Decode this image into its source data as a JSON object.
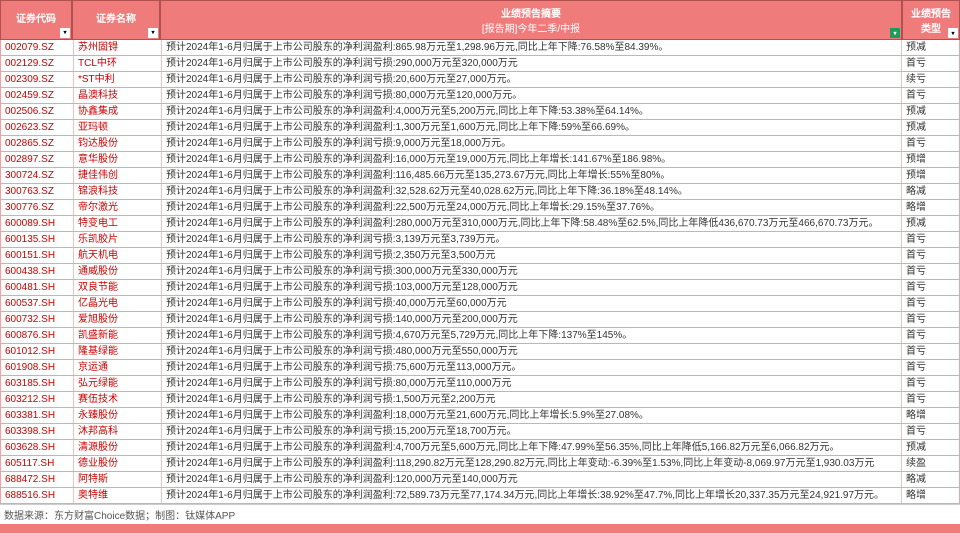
{
  "header": {
    "code": "证券代码",
    "name": "证券名称",
    "summary_line1": "业绩预告摘要",
    "summary_line2": "[报告期]今年二季/中报",
    "type_line1": "业绩预告",
    "type_line2": "类型"
  },
  "rows": [
    {
      "code": "002079.SZ",
      "name": "苏州固锝",
      "summary": "预计2024年1-6月归属于上市公司股东的净利润盈利:865.98万元至1,298.96万元,同比上年下降:76.58%至84.39%。",
      "type": "预减"
    },
    {
      "code": "002129.SZ",
      "name": "TCL中环",
      "summary": "预计2024年1-6月归属于上市公司股东的净利润亏损:290,000万元至320,000万元",
      "type": "首亏"
    },
    {
      "code": "002309.SZ",
      "name": "*ST中利",
      "summary": "预计2024年1-6月归属于上市公司股东的净利润亏损:20,600万元至27,000万元。",
      "type": "续亏"
    },
    {
      "code": "002459.SZ",
      "name": "晶澳科技",
      "summary": "预计2024年1-6月归属于上市公司股东的净利润亏损:80,000万元至120,000万元。",
      "type": "首亏"
    },
    {
      "code": "002506.SZ",
      "name": "协鑫集成",
      "summary": "预计2024年1-6月归属于上市公司股东的净利润盈利:4,000万元至5,200万元,同比上年下降:53.38%至64.14%。",
      "type": "预减"
    },
    {
      "code": "002623.SZ",
      "name": "亚玛顿",
      "summary": "预计2024年1-6月归属于上市公司股东的净利润盈利:1,300万元至1,600万元,同比上年下降:59%至66.69%。",
      "type": "预减"
    },
    {
      "code": "002865.SZ",
      "name": "钧达股份",
      "summary": "预计2024年1-6月归属于上市公司股东的净利润亏损:9,000万元至18,000万元。",
      "type": "首亏"
    },
    {
      "code": "002897.SZ",
      "name": "意华股份",
      "summary": "预计2024年1-6月归属于上市公司股东的净利润盈利:16,000万元至19,000万元,同比上年增长:141.67%至186.98%。",
      "type": "预增"
    },
    {
      "code": "300724.SZ",
      "name": "捷佳伟创",
      "summary": "预计2024年1-6月归属于上市公司股东的净利润盈利:116,485.66万元至135,273.67万元,同比上年增长:55%至80%。",
      "type": "预增"
    },
    {
      "code": "300763.SZ",
      "name": "锦浪科技",
      "summary": "预计2024年1-6月归属于上市公司股东的净利润盈利:32,528.62万元至40,028.62万元,同比上年下降:36.18%至48.14%。",
      "type": "略减"
    },
    {
      "code": "300776.SZ",
      "name": "帝尔激光",
      "summary": "预计2024年1-6月归属于上市公司股东的净利润盈利:22,500万元至24,000万元,同比上年增长:29.15%至37.76%。",
      "type": "略增"
    },
    {
      "code": "600089.SH",
      "name": "特变电工",
      "summary": "预计2024年1-6月归属于上市公司股东的净利润盈利:280,000万元至310,000万元,同比上年下降:58.48%至62.5%,同比上年降低436,670.73万元至466,670.73万元。",
      "type": "预减"
    },
    {
      "code": "600135.SH",
      "name": "乐凯胶片",
      "summary": "预计2024年1-6月归属于上市公司股东的净利润亏损:3,139万元至3,739万元。",
      "type": "首亏"
    },
    {
      "code": "600151.SH",
      "name": "航天机电",
      "summary": "预计2024年1-6月归属于上市公司股东的净利润亏损:2,350万元至3,500万元",
      "type": "首亏"
    },
    {
      "code": "600438.SH",
      "name": "通威股份",
      "summary": "预计2024年1-6月归属于上市公司股东的净利润亏损:300,000万元至330,000万元",
      "type": "首亏"
    },
    {
      "code": "600481.SH",
      "name": "双良节能",
      "summary": "预计2024年1-6月归属于上市公司股东的净利润亏损:103,000万元至128,000万元",
      "type": "首亏"
    },
    {
      "code": "600537.SH",
      "name": "亿晶光电",
      "summary": "预计2024年1-6月归属于上市公司股东的净利润亏损:40,000万元至60,000万元",
      "type": "首亏"
    },
    {
      "code": "600732.SH",
      "name": "爱旭股份",
      "summary": "预计2024年1-6月归属于上市公司股东的净利润亏损:140,000万元至200,000万元",
      "type": "首亏"
    },
    {
      "code": "600876.SH",
      "name": "凯盛新能",
      "summary": "预计2024年1-6月归属于上市公司股东的净利润亏损:4,670万元至5,729万元,同比上年下降:137%至145%。",
      "type": "首亏"
    },
    {
      "code": "601012.SH",
      "name": "隆基绿能",
      "summary": "预计2024年1-6月归属于上市公司股东的净利润亏损:480,000万元至550,000万元",
      "type": "首亏"
    },
    {
      "code": "601908.SH",
      "name": "京运通",
      "summary": "预计2024年1-6月归属于上市公司股东的净利润亏损:75,600万元至113,000万元。",
      "type": "首亏"
    },
    {
      "code": "603185.SH",
      "name": "弘元绿能",
      "summary": "预计2024年1-6月归属于上市公司股东的净利润亏损:80,000万元至110,000万元",
      "type": "首亏"
    },
    {
      "code": "603212.SH",
      "name": "赛伍技术",
      "summary": "预计2024年1-6月归属于上市公司股东的净利润亏损:1,500万元至2,200万元",
      "type": "首亏"
    },
    {
      "code": "603381.SH",
      "name": "永臻股份",
      "summary": "预计2024年1-6月归属于上市公司股东的净利润盈利:18,000万元至21,600万元,同比上年增长:5.9%至27.08%。",
      "type": "略增"
    },
    {
      "code": "603398.SH",
      "name": "沐邦高科",
      "summary": "预计2024年1-6月归属于上市公司股东的净利润亏损:15,200万元至18,700万元。",
      "type": "首亏"
    },
    {
      "code": "603628.SH",
      "name": "清源股份",
      "summary": "预计2024年1-6月归属于上市公司股东的净利润盈利:4,700万元至5,600万元,同比上年下降:47.99%至56.35%,同比上年降低5,166.82万元至6,066.82万元。",
      "type": "预减"
    },
    {
      "code": "605117.SH",
      "name": "德业股份",
      "summary": "预计2024年1-6月归属于上市公司股东的净利润盈利:118,290.82万元至128,290.82万元,同比上年变动:-6.39%至1.53%,同比上年变动-8,069.97万元至1,930.03万元",
      "type": "续盈"
    },
    {
      "code": "688472.SH",
      "name": "阿特斯",
      "summary": "预计2024年1-6月归属于上市公司股东的净利润盈利:120,000万元至140,000万元",
      "type": "略减"
    },
    {
      "code": "688516.SH",
      "name": "奥特维",
      "summary": "预计2024年1-6月归属于上市公司股东的净利润盈利:72,589.73万元至77,174.34万元,同比上年增长:38.92%至47.7%,同比上年增长20,337.35万元至24,921.97万元。",
      "type": "略增"
    }
  ],
  "footer": "数据来源：东方财富Choice数据；制图：钛媒体APP",
  "style": {
    "header_bg": "#f07b7b",
    "header_fg": "#ffffff",
    "row_border": "#f5a0a0",
    "code_color": "#cc0000",
    "text_color": "#333333",
    "font_size": 10,
    "col_widths": {
      "code": 72,
      "name": 88,
      "type": 58
    }
  }
}
